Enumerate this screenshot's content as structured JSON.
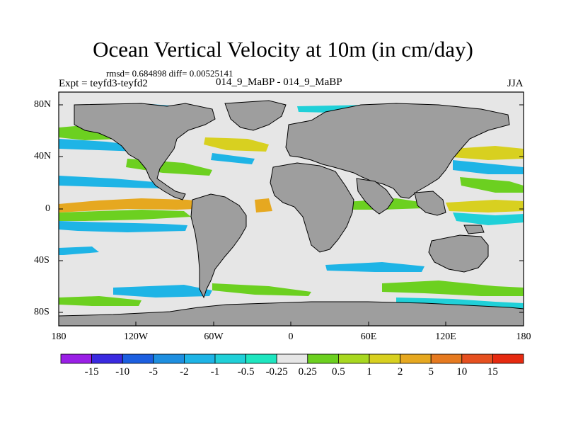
{
  "title": "Ocean Vertical Velocity at 10m (in cm/day)",
  "stats": {
    "rmsd_text": "rmsd= 0.684898 diff= 0.00525141"
  },
  "left_label": "Expt = teyfd3-teyfd2",
  "center_label": "014_9_MaBP - 014_9_MaBP",
  "right_label": "JJA",
  "axes": {
    "y_ticks": [
      "80N",
      "40N",
      "0",
      "40S",
      "80S"
    ],
    "x_ticks": [
      "180",
      "120W",
      "60W",
      "0",
      "60E",
      "120E",
      "180"
    ]
  },
  "colors": {
    "land": "#9e9e9e",
    "ocean_neutral": "#e6e6e6"
  },
  "colorbar": {
    "labels": [
      "-15",
      "-10",
      "-5",
      "-2",
      "-1",
      "-0.5",
      "-0.25",
      "0.25",
      "0.5",
      "1",
      "2",
      "5",
      "10",
      "15"
    ],
    "colors": [
      "#9a1fe6",
      "#3a2ae0",
      "#1c5fe0",
      "#1e8fe0",
      "#1eb4e6",
      "#20d0d8",
      "#1ee6c0",
      "#e6e6e6",
      "#6cd020",
      "#a8d820",
      "#d8d020",
      "#e6a820",
      "#e67a20",
      "#e65020",
      "#e62a10"
    ]
  }
}
